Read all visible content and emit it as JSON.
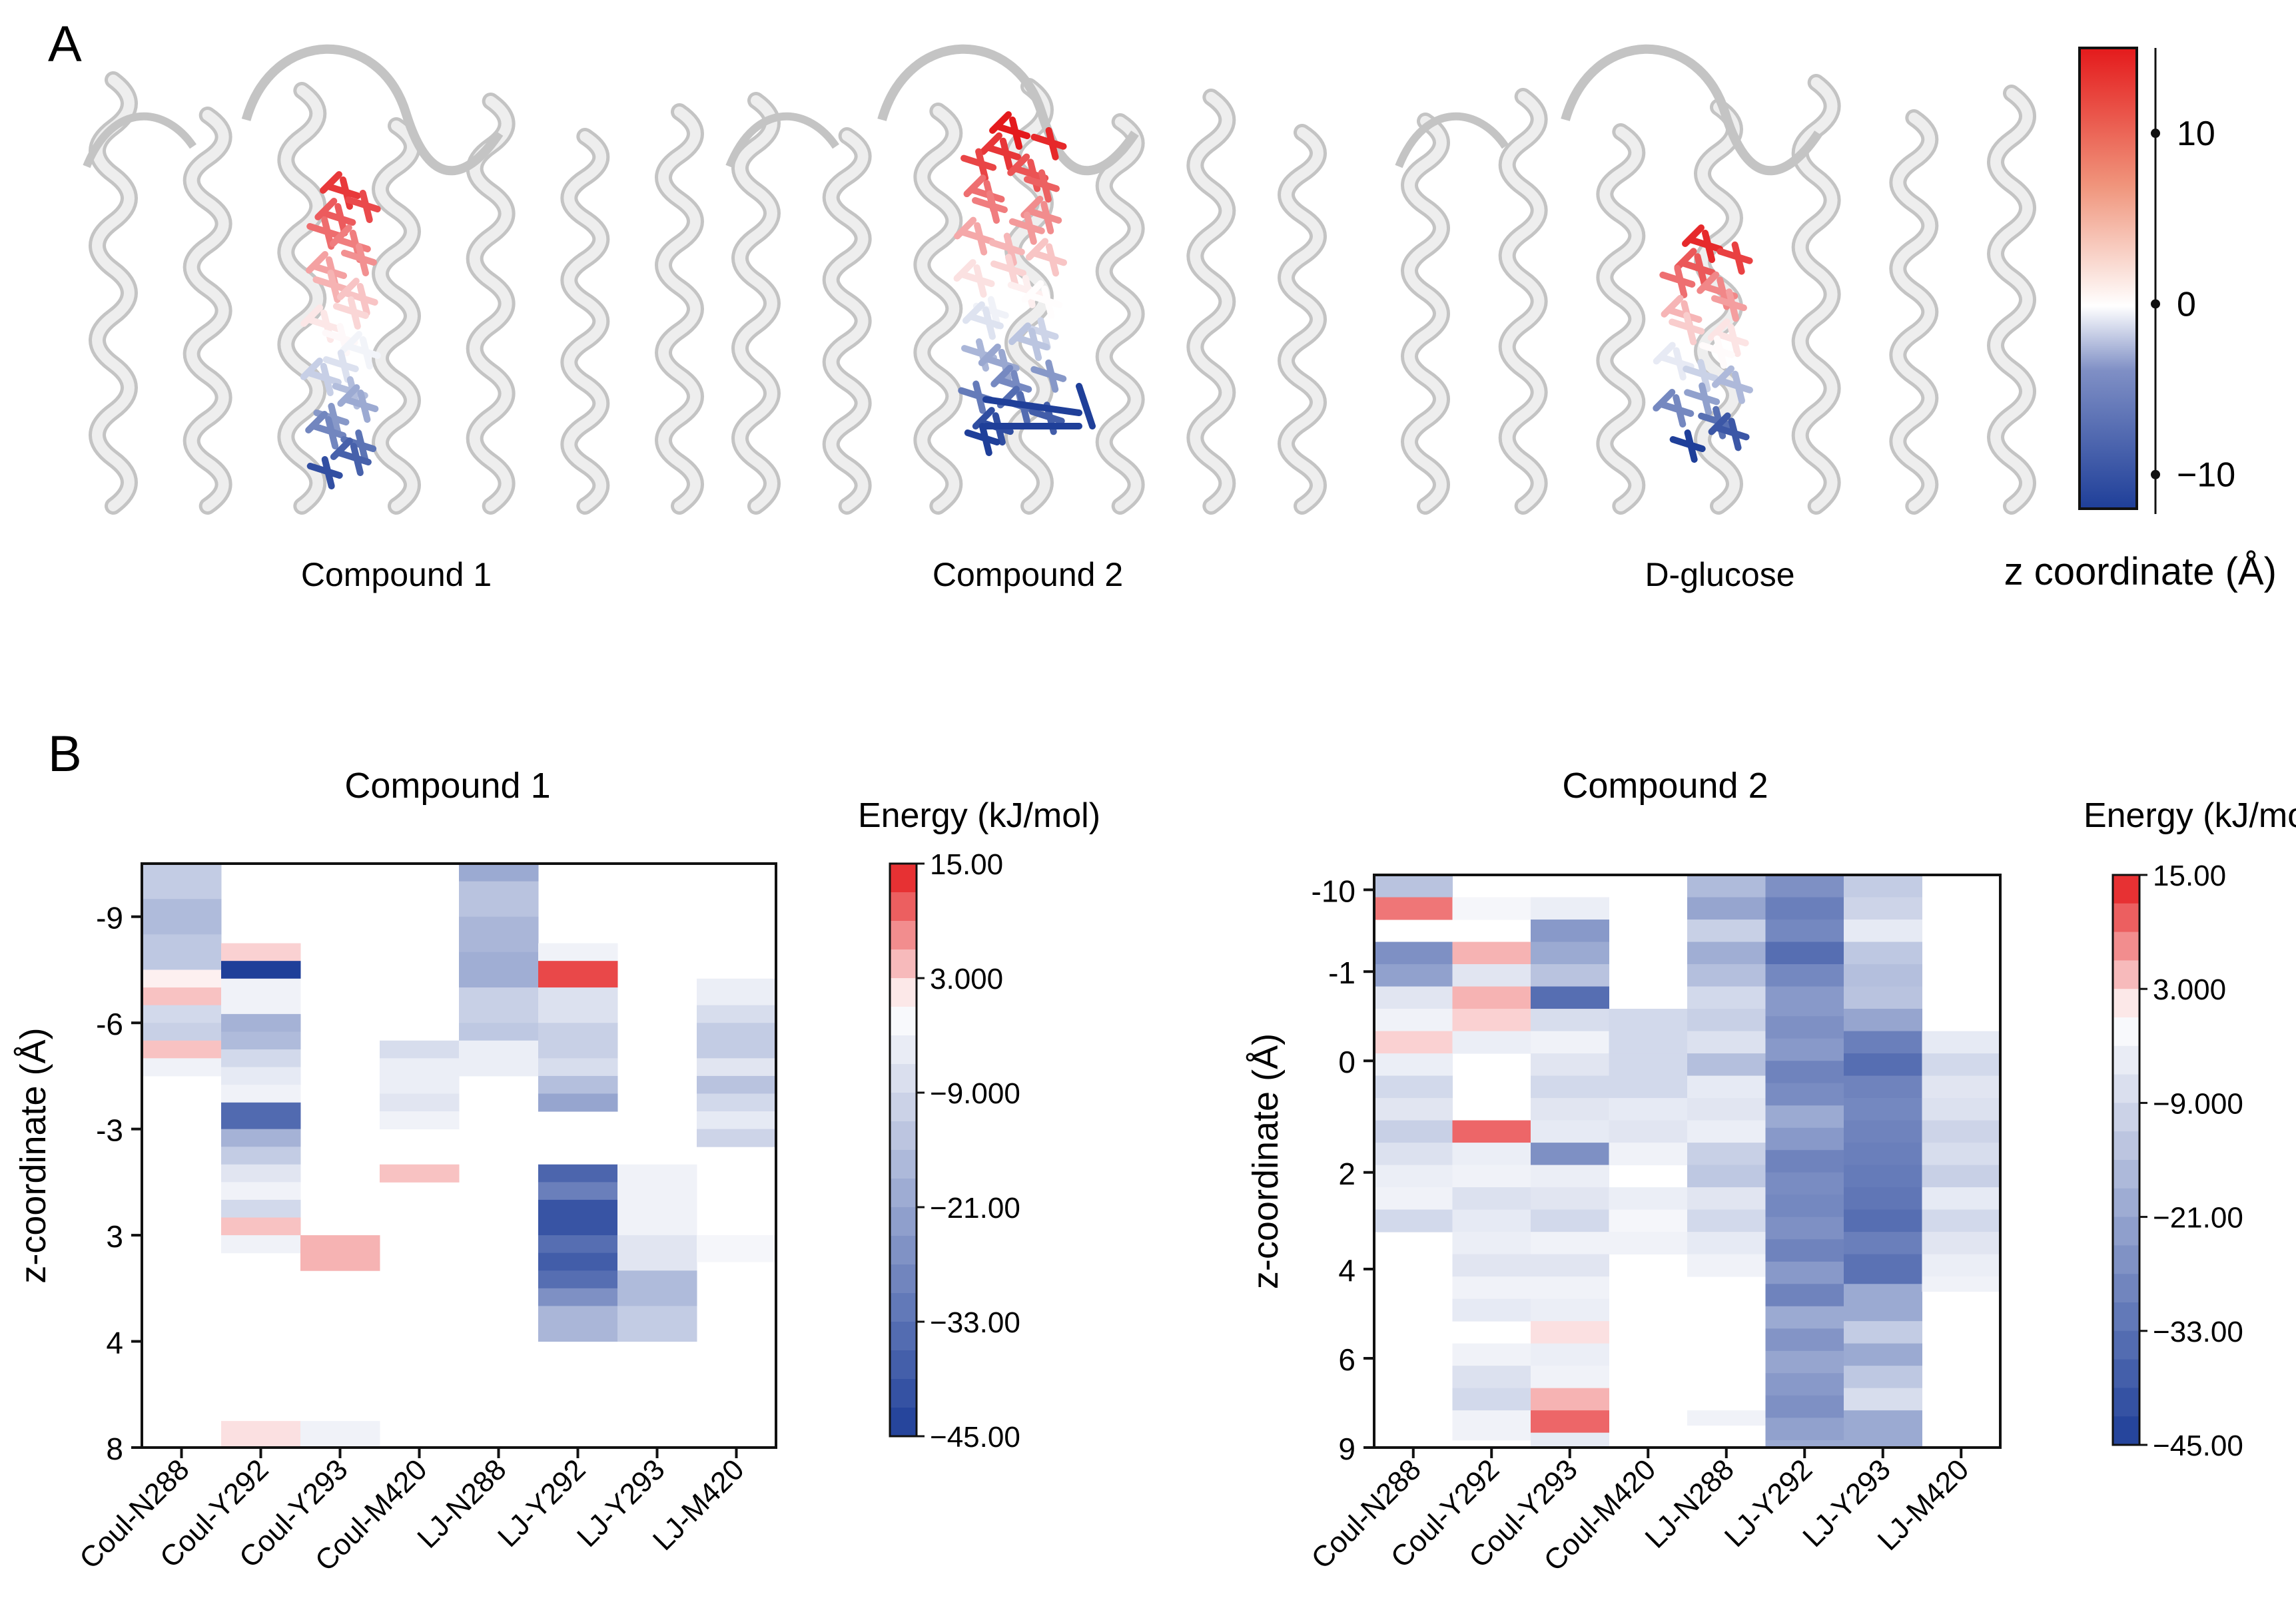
{
  "colors": {
    "red": "#e41a1c",
    "white": "#ffffff",
    "blue": "#1f3f99",
    "ribbon": "#dadada",
    "ribbonEdge": "#c4c4c4"
  },
  "panelA": {
    "label": "A",
    "titles": [
      "Compound 1",
      "Compound 2",
      "D-glucose"
    ],
    "colorbar": {
      "title": "z coordinate (Å)",
      "ticks": [
        "10",
        "0",
        "−10"
      ],
      "values": [
        10,
        0,
        -10
      ],
      "min": -12,
      "max": 15
    }
  },
  "chart_data": [
    {
      "type": "heatmap",
      "title": "Compound 1",
      "ylabel": "z-coordinate (Å)",
      "columns": [
        "Coul-N288",
        "Coul-Y292",
        "Coul-Y293",
        "Coul-M420",
        "LJ-N288",
        "LJ-Y292",
        "LJ-Y293",
        "LJ-M420"
      ],
      "ytick_labels": [
        "-9",
        "-6",
        "-3",
        "3",
        "4",
        "8"
      ],
      "ytick_rows": [
        1,
        4,
        7,
        10,
        13,
        16
      ],
      "rows_count": 16.5,
      "colorbar": {
        "title": "Energy (kJ/mol)",
        "ticks": [
          "15.00",
          "3.000",
          "−9.000",
          "−21.00",
          "−33.00",
          "−45.00"
        ],
        "tick_values": [
          15,
          3,
          -9,
          -21,
          -33,
          -45
        ],
        "min": -45,
        "max": 15
      },
      "cells": [
        [
          0,
          0,
          1,
          -12
        ],
        [
          0,
          1,
          1,
          -16
        ],
        [
          0,
          2,
          1,
          -13
        ],
        [
          0,
          3,
          0.5,
          1
        ],
        [
          0,
          3.5,
          0.5,
          4
        ],
        [
          0,
          4,
          0.5,
          -9
        ],
        [
          0,
          4.5,
          0.5,
          -11
        ],
        [
          0,
          5,
          0.5,
          4
        ],
        [
          0,
          5.5,
          0.5,
          -3
        ],
        [
          1,
          2.25,
          0.5,
          3
        ],
        [
          1,
          2.75,
          0.5,
          -45
        ],
        [
          1,
          3.25,
          1,
          -3
        ],
        [
          1,
          4.25,
          0.5,
          -18
        ],
        [
          1,
          4.75,
          0.5,
          -16
        ],
        [
          1,
          5.25,
          0.5,
          -9
        ],
        [
          1,
          5.75,
          0.5,
          -5
        ],
        [
          1,
          6.25,
          0.5,
          -3
        ],
        [
          1,
          6.75,
          0.75,
          -35
        ],
        [
          1,
          7.5,
          0.5,
          -18
        ],
        [
          1,
          8,
          0.5,
          -12
        ],
        [
          1,
          8.5,
          0.5,
          -6
        ],
        [
          1,
          9,
          0.5,
          -3
        ],
        [
          1,
          9.5,
          0.5,
          -9
        ],
        [
          1,
          10,
          0.5,
          4
        ],
        [
          1,
          10.5,
          0.5,
          -3
        ],
        [
          1,
          15.75,
          0.75,
          2
        ],
        [
          2,
          10.5,
          1,
          5
        ],
        [
          2,
          15.75,
          0.75,
          -3
        ],
        [
          3,
          5,
          0.5,
          -8
        ],
        [
          3,
          5.5,
          1,
          -4
        ],
        [
          3,
          6.5,
          0.5,
          -6
        ],
        [
          3,
          7,
          0.5,
          -3
        ],
        [
          3,
          8.5,
          0.5,
          4
        ],
        [
          4,
          0,
          0.5,
          -20
        ],
        [
          4,
          0.5,
          1,
          -14
        ],
        [
          4,
          1.5,
          1,
          -17
        ],
        [
          4,
          2.5,
          1,
          -19
        ],
        [
          4,
          3.5,
          1,
          -11
        ],
        [
          4,
          4.5,
          0.5,
          -13
        ],
        [
          4,
          5,
          1,
          -4
        ],
        [
          5,
          2.25,
          0.5,
          -3
        ],
        [
          5,
          2.75,
          0.75,
          12
        ],
        [
          5,
          3.5,
          1,
          -7
        ],
        [
          5,
          4.5,
          1,
          -11
        ],
        [
          5,
          5.5,
          0.5,
          -8
        ],
        [
          5,
          6,
          0.5,
          -15
        ],
        [
          5,
          6.5,
          0.5,
          -21
        ],
        [
          5,
          8.5,
          0.5,
          -36
        ],
        [
          5,
          9,
          0.5,
          -30
        ],
        [
          5,
          9.5,
          1,
          -40
        ],
        [
          5,
          10.5,
          0.5,
          -34
        ],
        [
          5,
          11,
          0.5,
          -38
        ],
        [
          5,
          11.5,
          0.5,
          -34
        ],
        [
          5,
          12,
          0.5,
          -26
        ],
        [
          5,
          12.5,
          1,
          -17
        ],
        [
          6,
          8.5,
          2,
          -3
        ],
        [
          6,
          10.5,
          1,
          -6
        ],
        [
          6,
          11.5,
          1,
          -16
        ],
        [
          6,
          12.5,
          1,
          -12
        ],
        [
          7,
          3.25,
          0.75,
          -4
        ],
        [
          7,
          4,
          0.5,
          -8
        ],
        [
          7,
          4.5,
          1,
          -12
        ],
        [
          7,
          5.5,
          0.5,
          -6
        ],
        [
          7,
          6,
          0.5,
          -14
        ],
        [
          7,
          6.5,
          0.5,
          -9
        ],
        [
          7,
          7,
          0.5,
          -5
        ],
        [
          7,
          7.5,
          0.5,
          -10
        ],
        [
          7,
          10.5,
          0.75,
          -2
        ]
      ]
    },
    {
      "type": "heatmap",
      "title": "Compound 2",
      "ylabel": "z-coordinate (Å)",
      "columns": [
        "Coul-N288",
        "Coul-Y292",
        "Coul-Y293",
        "Coul-M420",
        "LJ-N288",
        "LJ-Y292",
        "LJ-Y293",
        "LJ-M420"
      ],
      "ytick_labels": [
        "-10",
        "-1",
        "0",
        "2",
        "4",
        "6",
        "9"
      ],
      "ytick_rows": [
        0,
        2.75,
        5.75,
        9.5,
        12.75,
        15.75,
        18.75
      ],
      "rows_count": 19.25,
      "colorbar": {
        "title": "Energy (kJ/mol)",
        "ticks": [
          "15.00",
          "3.000",
          "−9.000",
          "−21.00",
          "−33.00",
          "−45.00"
        ],
        "tick_values": [
          15,
          3,
          -9,
          -21,
          -33,
          -45
        ],
        "min": -45,
        "max": 15
      },
      "cells": [
        [
          0,
          0,
          0.75,
          -14
        ],
        [
          0,
          0.75,
          0.75,
          9
        ],
        [
          0,
          2.25,
          0.75,
          -26
        ],
        [
          0,
          3,
          0.75,
          -22
        ],
        [
          0,
          3.75,
          0.75,
          -6
        ],
        [
          0,
          4.5,
          0.75,
          -3
        ],
        [
          0,
          5.25,
          0.75,
          3
        ],
        [
          0,
          6,
          0.75,
          -4
        ],
        [
          0,
          6.75,
          0.75,
          -9
        ],
        [
          0,
          7.5,
          0.75,
          -6
        ],
        [
          0,
          8.25,
          0.75,
          -11
        ],
        [
          0,
          9,
          0.75,
          -7
        ],
        [
          0,
          9.75,
          0.75,
          -4
        ],
        [
          0,
          10.5,
          0.75,
          -3
        ],
        [
          0,
          11.25,
          0.75,
          -9
        ],
        [
          1,
          0.75,
          0.75,
          -2
        ],
        [
          1,
          2.25,
          0.75,
          5
        ],
        [
          1,
          3,
          0.75,
          -6
        ],
        [
          1,
          3.75,
          0.75,
          5
        ],
        [
          1,
          4.5,
          0.75,
          3
        ],
        [
          1,
          5.25,
          0.75,
          -4
        ],
        [
          1,
          8.25,
          0.75,
          10
        ],
        [
          1,
          9,
          0.75,
          -4
        ],
        [
          1,
          9.75,
          0.75,
          -3
        ],
        [
          1,
          10.5,
          0.75,
          -7
        ],
        [
          1,
          11.25,
          0.75,
          -5
        ],
        [
          1,
          12,
          0.75,
          -4
        ],
        [
          1,
          12.75,
          0.75,
          -6
        ],
        [
          1,
          13.5,
          0.75,
          -3
        ],
        [
          1,
          14.25,
          0.75,
          -5
        ],
        [
          1,
          15.75,
          0.75,
          -3
        ],
        [
          1,
          16.5,
          0.75,
          -7
        ],
        [
          1,
          17.25,
          0.75,
          -9
        ],
        [
          1,
          18,
          1,
          -3
        ],
        [
          2,
          0.75,
          0.75,
          -4
        ],
        [
          2,
          1.5,
          0.75,
          -24
        ],
        [
          2,
          2.25,
          0.75,
          -20
        ],
        [
          2,
          3,
          0.75,
          -14
        ],
        [
          2,
          3.75,
          0.75,
          -34
        ],
        [
          2,
          4.5,
          0.75,
          -8
        ],
        [
          2,
          5.25,
          0.75,
          -3
        ],
        [
          2,
          6,
          0.75,
          -6
        ],
        [
          2,
          6.75,
          0.75,
          -9
        ],
        [
          2,
          7.5,
          0.75,
          -6
        ],
        [
          2,
          8.25,
          0.75,
          -5
        ],
        [
          2,
          9,
          0.75,
          -26
        ],
        [
          2,
          9.75,
          0.75,
          -4
        ],
        [
          2,
          10.5,
          0.75,
          -6
        ],
        [
          2,
          11.25,
          0.75,
          -9
        ],
        [
          2,
          12,
          0.75,
          -3
        ],
        [
          2,
          12.75,
          0.75,
          -6
        ],
        [
          2,
          13.5,
          0.75,
          -3
        ],
        [
          2,
          14.25,
          0.75,
          -4
        ],
        [
          2,
          15,
          0.75,
          2
        ],
        [
          2,
          15.75,
          0.75,
          -4
        ],
        [
          2,
          16.5,
          0.75,
          -3
        ],
        [
          2,
          17.25,
          0.75,
          5
        ],
        [
          2,
          18,
          0.75,
          10
        ],
        [
          2,
          18.75,
          0.5,
          -5
        ],
        [
          3,
          4.5,
          1.5,
          -9
        ],
        [
          3,
          6,
          1.5,
          -9
        ],
        [
          3,
          7.5,
          0.75,
          -5
        ],
        [
          3,
          8.25,
          0.75,
          -6
        ],
        [
          3,
          9,
          0.75,
          -3
        ],
        [
          3,
          10.5,
          0.75,
          -4
        ],
        [
          3,
          11.25,
          0.75,
          -2
        ],
        [
          3,
          12,
          0.75,
          -3
        ],
        [
          4,
          0,
          0.75,
          -16
        ],
        [
          4,
          0.75,
          0.75,
          -21
        ],
        [
          4,
          1.5,
          0.75,
          -11
        ],
        [
          4,
          2.25,
          0.75,
          -19
        ],
        [
          4,
          3,
          0.75,
          -15
        ],
        [
          4,
          3.75,
          0.75,
          -9
        ],
        [
          4,
          4.5,
          0.75,
          -11
        ],
        [
          4,
          5.25,
          0.75,
          -7
        ],
        [
          4,
          6,
          0.75,
          -15
        ],
        [
          4,
          6.75,
          0.75,
          -5
        ],
        [
          4,
          7.5,
          0.75,
          -6
        ],
        [
          4,
          8.25,
          0.75,
          -4
        ],
        [
          4,
          9,
          0.75,
          -11
        ],
        [
          4,
          9.75,
          0.75,
          -13
        ],
        [
          4,
          10.5,
          0.75,
          -6
        ],
        [
          4,
          11.25,
          0.75,
          -9
        ],
        [
          4,
          12,
          0.75,
          -5
        ],
        [
          4,
          12.75,
          0.75,
          -3
        ],
        [
          4,
          18,
          0.5,
          -3
        ],
        [
          5,
          0,
          0.75,
          -26
        ],
        [
          5,
          0.75,
          0.75,
          -30
        ],
        [
          5,
          1.5,
          0.75,
          -28
        ],
        [
          5,
          2.25,
          0.75,
          -34
        ],
        [
          5,
          3,
          0.75,
          -28
        ],
        [
          5,
          3.75,
          1,
          -24
        ],
        [
          5,
          4.75,
          0.75,
          -26
        ],
        [
          5,
          5.5,
          0.75,
          -24
        ],
        [
          5,
          6.25,
          0.75,
          -29
        ],
        [
          5,
          7,
          0.75,
          -27
        ],
        [
          5,
          7.75,
          0.75,
          -20
        ],
        [
          5,
          8.5,
          0.75,
          -24
        ],
        [
          5,
          9.25,
          0.75,
          -29
        ],
        [
          5,
          10,
          0.75,
          -27
        ],
        [
          5,
          10.75,
          0.75,
          -28
        ],
        [
          5,
          11.5,
          0.75,
          -26
        ],
        [
          5,
          12.25,
          0.75,
          -29
        ],
        [
          5,
          13,
          0.75,
          -24
        ],
        [
          5,
          13.75,
          0.75,
          -29
        ],
        [
          5,
          14.5,
          0.75,
          -20
        ],
        [
          5,
          15.25,
          0.75,
          -25
        ],
        [
          5,
          16,
          0.75,
          -21
        ],
        [
          5,
          16.75,
          0.75,
          -24
        ],
        [
          5,
          17.5,
          0.75,
          -26
        ],
        [
          5,
          18.25,
          0.75,
          -22
        ],
        [
          5,
          19,
          0.25,
          -20
        ],
        [
          6,
          0,
          0.75,
          -12
        ],
        [
          6,
          0.75,
          0.75,
          -10
        ],
        [
          6,
          1.5,
          0.75,
          -5
        ],
        [
          6,
          2.25,
          0.75,
          -13
        ],
        [
          6,
          3,
          0.75,
          -15
        ],
        [
          6,
          3.75,
          0.75,
          -14
        ],
        [
          6,
          4.5,
          0.75,
          -21
        ],
        [
          6,
          5.25,
          0.75,
          -30
        ],
        [
          6,
          6,
          0.75,
          -34
        ],
        [
          6,
          6.75,
          0.75,
          -29
        ],
        [
          6,
          7.5,
          0.75,
          -28
        ],
        [
          6,
          8.25,
          0.75,
          -29
        ],
        [
          6,
          9,
          0.75,
          -30
        ],
        [
          6,
          9.75,
          0.75,
          -31
        ],
        [
          6,
          10.5,
          0.75,
          -32
        ],
        [
          6,
          11.25,
          0.75,
          -34
        ],
        [
          6,
          12,
          0.75,
          -30
        ],
        [
          6,
          12.75,
          1,
          -33
        ],
        [
          6,
          13.75,
          1.25,
          -20
        ],
        [
          6,
          15,
          0.75,
          -12
        ],
        [
          6,
          15.75,
          0.75,
          -20
        ],
        [
          6,
          16.5,
          0.75,
          -13
        ],
        [
          6,
          17.25,
          0.75,
          -8
        ],
        [
          6,
          18,
          1.25,
          -20
        ],
        [
          7,
          5.25,
          0.75,
          -5
        ],
        [
          7,
          6,
          0.75,
          -9
        ],
        [
          7,
          6.75,
          0.75,
          -6
        ],
        [
          7,
          7.5,
          0.75,
          -7
        ],
        [
          7,
          8.25,
          0.75,
          -10
        ],
        [
          7,
          9,
          0.75,
          -8
        ],
        [
          7,
          9.75,
          0.75,
          -11
        ],
        [
          7,
          10.5,
          0.75,
          -5
        ],
        [
          7,
          11.25,
          0.75,
          -9
        ],
        [
          7,
          12,
          0.75,
          -6
        ],
        [
          7,
          12.75,
          0.75,
          -4
        ],
        [
          7,
          13.5,
          0.5,
          -3
        ]
      ]
    }
  ]
}
